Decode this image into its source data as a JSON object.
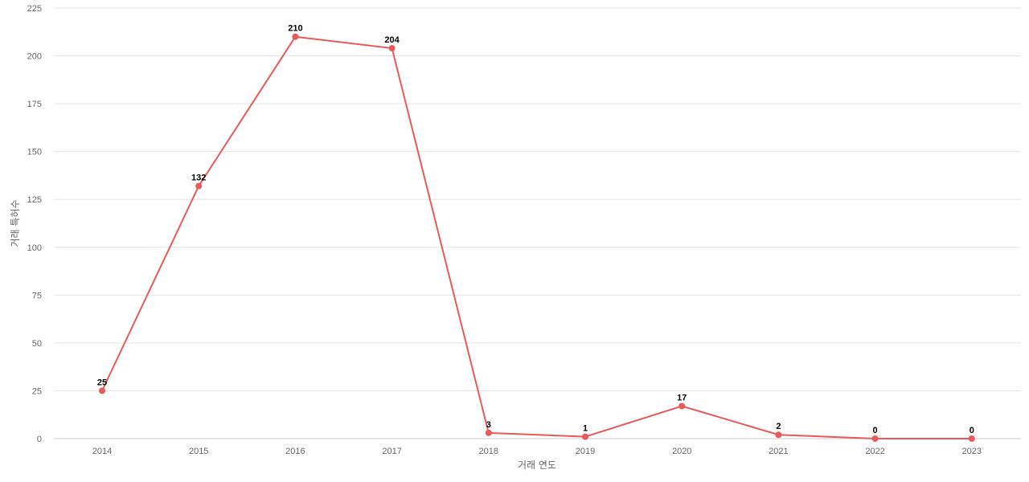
{
  "chart_data": {
    "type": "line",
    "title": "",
    "xlabel": "거래 연도",
    "ylabel": "거래 특허수",
    "categories": [
      "2014",
      "2015",
      "2016",
      "2017",
      "2018",
      "2019",
      "2020",
      "2021",
      "2022",
      "2023"
    ],
    "series": [
      {
        "values": [
          25,
          132,
          210,
          204,
          3,
          1,
          17,
          2,
          0,
          0
        ],
        "color": "#e8595a"
      }
    ],
    "ylim": [
      0,
      225
    ],
    "yticks": [
      "0",
      "25",
      "50",
      "75",
      "100",
      "125",
      "150",
      "175",
      "200",
      "225"
    ],
    "grid": true,
    "legend": "none",
    "data_labels": true
  }
}
